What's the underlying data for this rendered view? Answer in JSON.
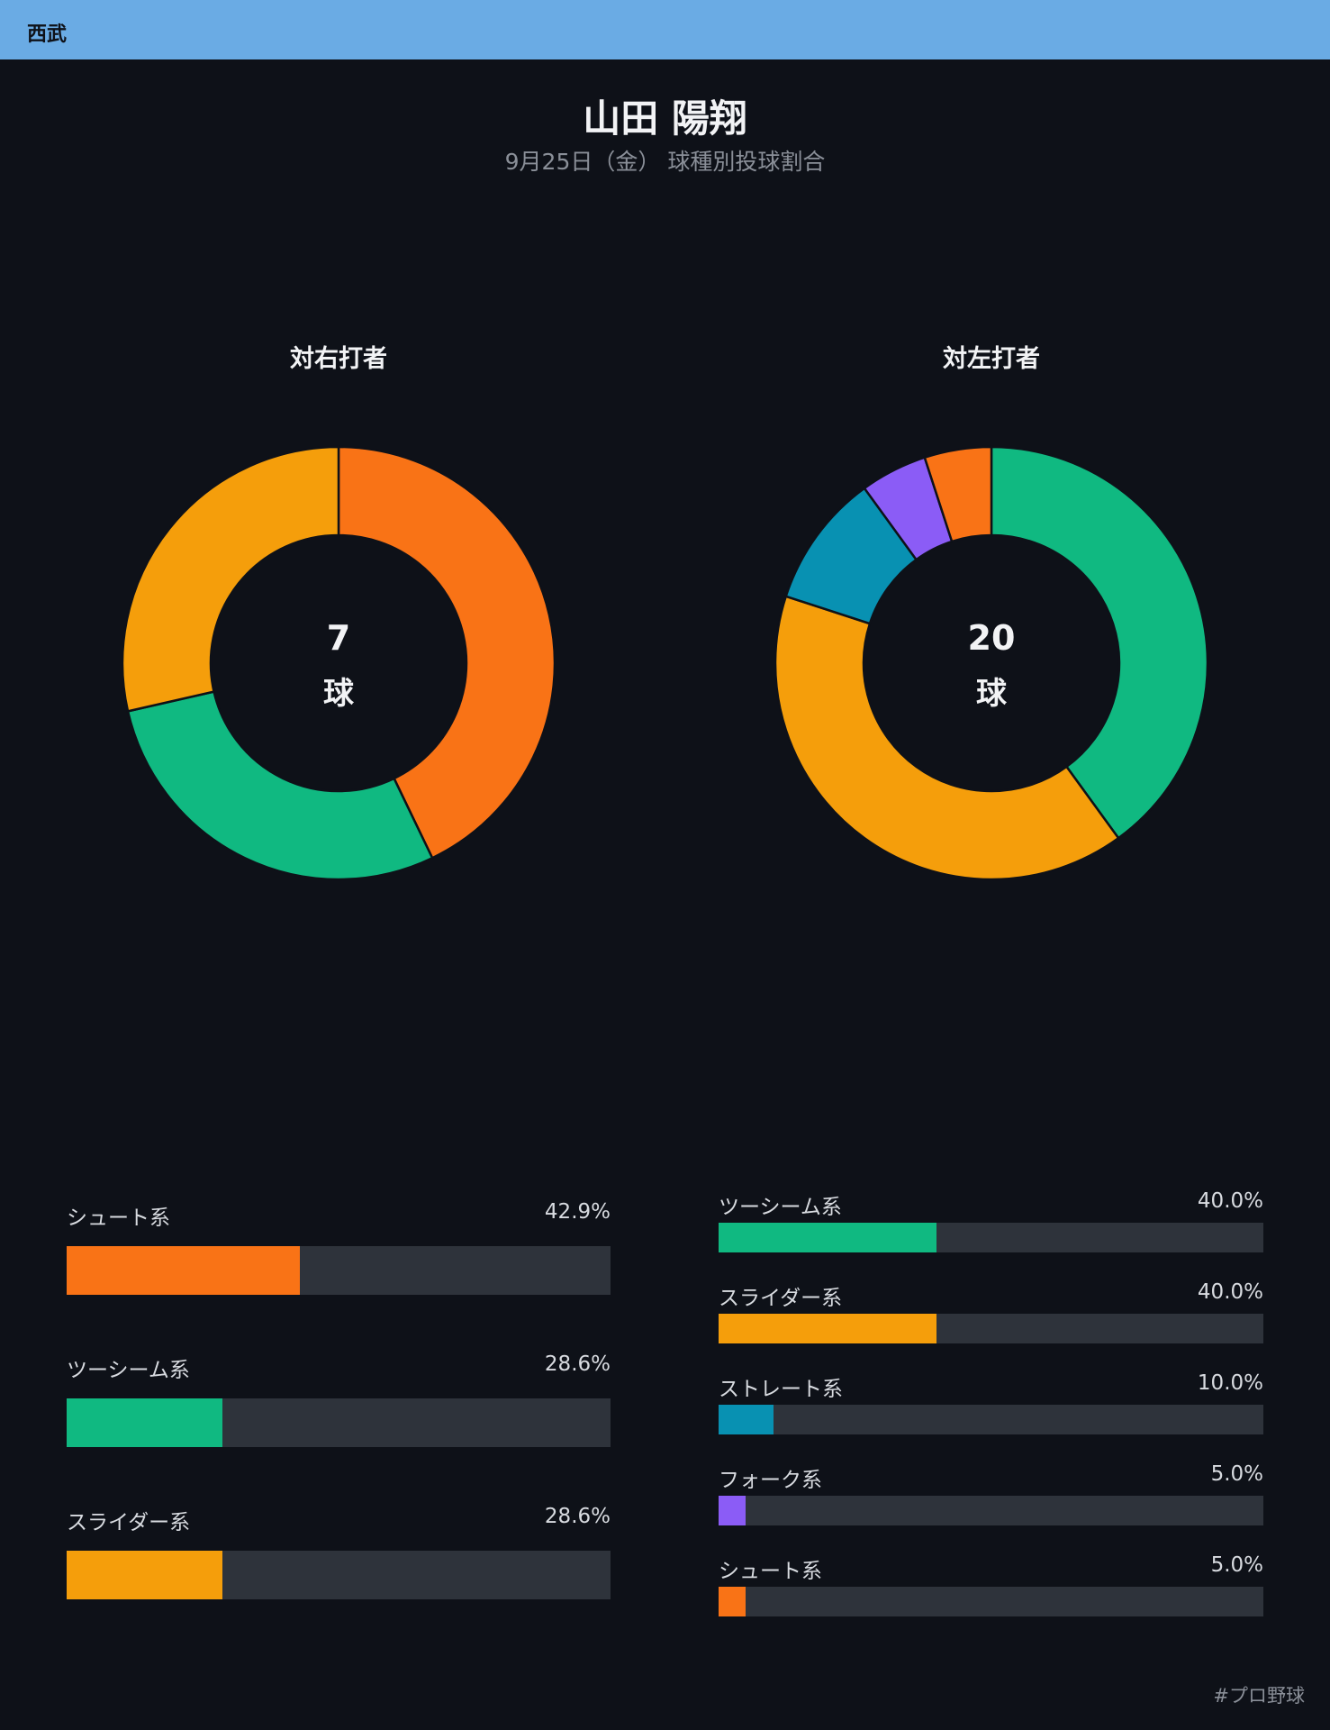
{
  "header": {
    "team": "西武"
  },
  "title": "山田 陽翔",
  "subtitle": "9月25日（金） 球種別投球割合",
  "footer": {
    "hashtag": "#プロ野球"
  },
  "chart_data": [
    {
      "type": "pie",
      "title": "対右打者",
      "center_count": "7",
      "center_unit": "球",
      "categories": [
        "シュート系",
        "ツーシーム系",
        "スライダー系"
      ],
      "values": [
        42.9,
        28.6,
        28.6
      ],
      "percent_labels": [
        "42.9%",
        "28.6%",
        "28.6%"
      ],
      "colors": [
        "#f97316",
        "#10b981",
        "#f59e0b"
      ]
    },
    {
      "type": "pie",
      "title": "対左打者",
      "center_count": "20",
      "center_unit": "球",
      "categories": [
        "ツーシーム系",
        "スライダー系",
        "ストレート系",
        "フォーク系",
        "シュート系"
      ],
      "values": [
        40.0,
        40.0,
        10.0,
        5.0,
        5.0
      ],
      "percent_labels": [
        "40.0%",
        "40.0%",
        "10.0%",
        "5.0%",
        "5.0%"
      ],
      "colors": [
        "#10b981",
        "#f59e0b",
        "#0891b2",
        "#8b5cf6",
        "#f97316"
      ]
    }
  ]
}
